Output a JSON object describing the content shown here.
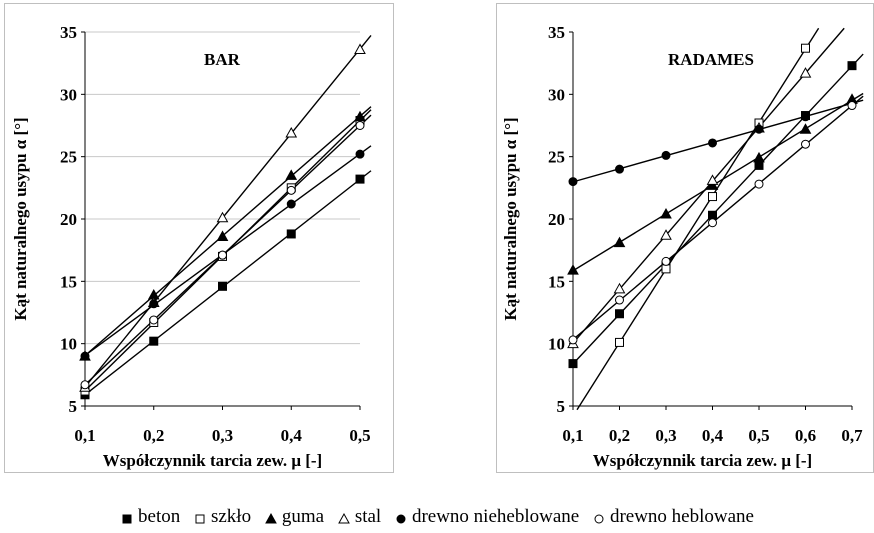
{
  "chart_data": [
    {
      "type": "scatter",
      "title": "BAR",
      "xlabel": "Współczynnik tarcia zew. μ [-]",
      "ylabel": "Kąt naturalnego usypu α [°]",
      "xlim": [
        0.1,
        0.5
      ],
      "ylim": [
        5,
        35
      ],
      "xticks": [
        "0,1",
        "0,2",
        "0,3",
        "0,4",
        "0,5"
      ],
      "yticks": [
        "5",
        "10",
        "15",
        "20",
        "25",
        "30",
        "35"
      ],
      "grid": true,
      "trendlines": true,
      "x": [
        0.1,
        0.2,
        0.3,
        0.4,
        0.5
      ],
      "series": [
        {
          "name": "beton",
          "marker": "square-filled",
          "values": [
            5.9,
            10.2,
            14.6,
            18.8,
            23.2
          ]
        },
        {
          "name": "szkło",
          "marker": "square-open",
          "values": [
            6.2,
            11.7,
            17.0,
            22.5,
            27.9
          ]
        },
        {
          "name": "guma",
          "marker": "triangle-filled",
          "values": [
            9.0,
            13.9,
            18.6,
            23.5,
            28.2
          ]
        },
        {
          "name": "stal",
          "marker": "triangle-open",
          "values": [
            6.5,
            13.3,
            20.1,
            26.9,
            33.6
          ]
        },
        {
          "name": "drewno nieheblowane",
          "marker": "circle-filled",
          "values": [
            9.0,
            13.2,
            17.1,
            21.2,
            25.2
          ]
        },
        {
          "name": "drewno heblowane",
          "marker": "circle-open",
          "values": [
            6.7,
            11.9,
            17.1,
            22.3,
            27.5
          ]
        }
      ]
    },
    {
      "type": "scatter",
      "title": "RADAMES",
      "xlabel": "Współczynnik tarcia zew. μ [-]",
      "ylabel": "Kąt naturalnego usypu α [°]",
      "xlim": [
        0.1,
        0.7
      ],
      "ylim": [
        5,
        35
      ],
      "xticks": [
        "0,1",
        "0,2",
        "0,3",
        "0,4",
        "0,5",
        "0,6",
        "0,7"
      ],
      "yticks": [
        "5",
        "10",
        "15",
        "20",
        "25",
        "30",
        "35"
      ],
      "grid": false,
      "trendlines": true,
      "x": [
        0.1,
        0.2,
        0.3,
        0.4,
        0.5,
        0.6,
        0.7
      ],
      "series": [
        {
          "name": "beton",
          "marker": "square-filled",
          "values": [
            8.4,
            12.4,
            16.3,
            20.3,
            24.3,
            28.3,
            32.3
          ]
        },
        {
          "name": "szkło",
          "marker": "square-open",
          "values": [
            null,
            10.1,
            16.0,
            21.8,
            27.7,
            33.7,
            null
          ]
        },
        {
          "name": "guma",
          "marker": "triangle-filled",
          "values": [
            15.9,
            18.1,
            20.4,
            22.7,
            24.9,
            27.2,
            29.6
          ]
        },
        {
          "name": "stal",
          "marker": "triangle-open",
          "values": [
            10.0,
            14.4,
            18.7,
            23.1,
            27.3,
            31.7,
            null
          ]
        },
        {
          "name": "drewno nieheblowane",
          "marker": "circle-filled",
          "values": [
            23.0,
            24.0,
            25.1,
            26.1,
            27.2,
            28.2,
            29.3
          ]
        },
        {
          "name": "drewno heblowane",
          "marker": "circle-open",
          "values": [
            10.3,
            13.5,
            16.6,
            19.7,
            22.8,
            26.0,
            29.1
          ]
        }
      ]
    }
  ],
  "legend": [
    {
      "label": "beton",
      "marker": "square-filled"
    },
    {
      "label": "szkło",
      "marker": "square-open"
    },
    {
      "label": "guma",
      "marker": "triangle-filled"
    },
    {
      "label": "stal",
      "marker": "triangle-open"
    },
    {
      "label": "drewno nieheblowane",
      "marker": "circle-filled"
    },
    {
      "label": "drewno heblowane",
      "marker": "circle-open"
    }
  ]
}
